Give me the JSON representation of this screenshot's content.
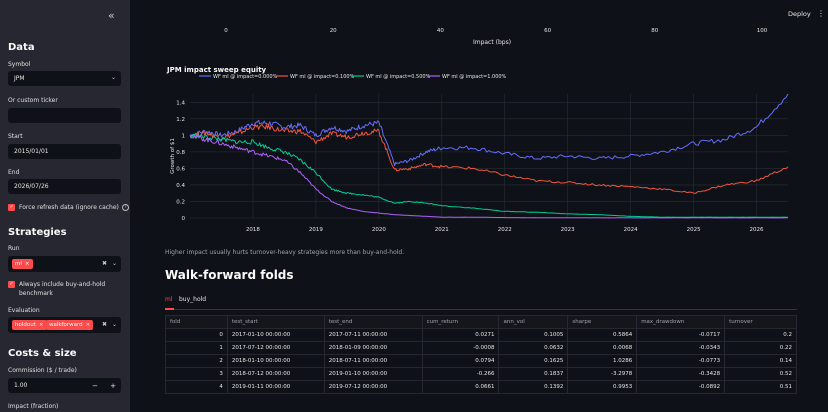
{
  "sidebar": {
    "collapse_icon": "double-chevron-left-icon",
    "data_heading": "Data",
    "symbol_label": "Symbol",
    "symbol_value": "JPM",
    "custom_ticker_label": "Or custom ticker",
    "custom_ticker_value": "",
    "start_label": "Start",
    "start_value": "2015/01/01",
    "end_label": "End",
    "end_value": "2026/07/26",
    "force_refresh_label": "Force refresh data (ignore cache)",
    "strategies_heading": "Strategies",
    "run_label": "Run",
    "run_tags": [
      "ml"
    ],
    "always_include_label_1": "Always include buy-and-hold",
    "always_include_label_2": "benchmark",
    "evaluation_label": "Evaluation",
    "evaluation_tags": [
      "holdout",
      "walkforward"
    ],
    "costs_heading": "Costs & size",
    "commission_label": "Commission ($ / trade)",
    "commission_value": "1.00",
    "impact_label": "Impact (fraction)"
  },
  "header": {
    "deploy_label": "Deploy"
  },
  "top_axis": {
    "label": "Impact (bps)",
    "ticks": [
      "0",
      "20",
      "40",
      "60",
      "80",
      "100"
    ]
  },
  "chart_data": {
    "type": "line",
    "title": "JPM impact sweep equity",
    "ylabel": "Growth of $1",
    "xlabel": "",
    "x_ticks": [
      "2018",
      "2019",
      "2020",
      "2021",
      "2022",
      "2023",
      "2024",
      "2025",
      "2026"
    ],
    "y_ticks": [
      "0",
      "0.2",
      "0.4",
      "0.6",
      "0.8",
      "1",
      "1.2",
      "1.4"
    ],
    "ylim": [
      0,
      1.5
    ],
    "xlim": [
      2017.0,
      2026.5
    ],
    "legend_position": "top",
    "x": [
      2017.0,
      2017.25,
      2017.5,
      2017.75,
      2018.0,
      2018.25,
      2018.5,
      2018.75,
      2019.0,
      2019.25,
      2019.5,
      2019.75,
      2020.0,
      2020.25,
      2020.5,
      2020.75,
      2021.0,
      2021.5,
      2022.0,
      2022.5,
      2023.0,
      2023.5,
      2024.0,
      2024.5,
      2025.0,
      2025.5,
      2026.0,
      2026.5
    ],
    "series": [
      {
        "name": "WF ml @ impact=0.000%",
        "color": "#636efa",
        "values": [
          1.0,
          1.05,
          1.0,
          1.05,
          1.15,
          1.15,
          1.1,
          1.12,
          1.0,
          1.1,
          1.05,
          1.12,
          1.15,
          0.65,
          0.7,
          0.8,
          0.85,
          0.85,
          0.78,
          0.72,
          0.75,
          0.72,
          0.75,
          0.8,
          0.9,
          0.95,
          1.1,
          1.5
        ]
      },
      {
        "name": "WF ml @ impact=0.100%",
        "color": "#ef553b",
        "values": [
          1.0,
          1.03,
          0.97,
          1.02,
          1.1,
          1.1,
          1.05,
          1.05,
          0.92,
          1.02,
          0.98,
          1.03,
          1.05,
          0.58,
          0.6,
          0.65,
          0.62,
          0.6,
          0.52,
          0.45,
          0.43,
          0.4,
          0.38,
          0.35,
          0.3,
          0.4,
          0.45,
          0.62
        ]
      },
      {
        "name": "WF ml @ impact=0.500%",
        "color": "#00cc96",
        "values": [
          1.0,
          0.98,
          0.95,
          0.92,
          0.92,
          0.85,
          0.8,
          0.7,
          0.55,
          0.35,
          0.3,
          0.28,
          0.25,
          0.18,
          0.2,
          0.18,
          0.15,
          0.12,
          0.08,
          0.07,
          0.05,
          0.04,
          0.02,
          0.01,
          0.01,
          0.01,
          0.01,
          0.01
        ]
      },
      {
        "name": "WF ml @ impact=1.000%",
        "color": "#ab63fa",
        "values": [
          1.0,
          0.95,
          0.9,
          0.85,
          0.8,
          0.75,
          0.7,
          0.55,
          0.35,
          0.2,
          0.12,
          0.08,
          0.06,
          0.04,
          0.03,
          0.02,
          0.01,
          0.01,
          0.005,
          0.004,
          0.003,
          0.002,
          0.002,
          0.002,
          0.002,
          0.002,
          0.002,
          0.002
        ]
      }
    ]
  },
  "caption": "Higher impact usually hurts turnover-heavy strategies more than buy-and-hold.",
  "walkforward": {
    "heading": "Walk-forward folds",
    "tabs": [
      "ml",
      "buy_hold"
    ],
    "columns": [
      "fold",
      "test_start",
      "test_end",
      "cum_return",
      "ann_vol",
      "sharpe",
      "max_drawdown",
      "turnover"
    ],
    "rows": [
      [
        "0",
        "2017-01-10 00:00:00",
        "2017-07-11 00:00:00",
        "0.0271",
        "0.1005",
        "0.5864",
        "-0.0717",
        "0.2"
      ],
      [
        "1",
        "2017-07-12 00:00:00",
        "2018-01-09 00:00:00",
        "-0.0008",
        "0.0632",
        "0.0068",
        "-0.0343",
        "0.22"
      ],
      [
        "2",
        "2018-01-10 00:00:00",
        "2018-07-11 00:00:00",
        "0.0794",
        "0.1625",
        "1.0286",
        "-0.0773",
        "0.14"
      ],
      [
        "3",
        "2018-07-12 00:00:00",
        "2019-01-10 00:00:00",
        "-0.266",
        "0.1837",
        "-3.2978",
        "-0.3428",
        "0.52"
      ],
      [
        "4",
        "2019-01-11 00:00:00",
        "2019-07-12 00:00:00",
        "0.0661",
        "0.1392",
        "0.9953",
        "-0.0892",
        "0.51"
      ]
    ]
  }
}
